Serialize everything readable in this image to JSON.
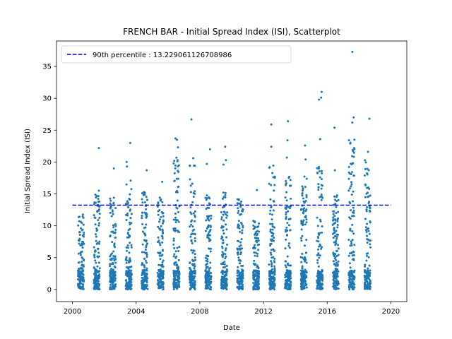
{
  "chart_data": {
    "type": "scatter",
    "title": "FRENCH BAR - Initial Spread Index (ISI), Scatterplot",
    "xlabel": "Date",
    "ylabel": "Initial Spread Index (ISI)",
    "xlim": [
      1999.0,
      2021.0
    ],
    "ylim": [
      -1.9,
      39.0
    ],
    "x_ticks": [
      "2000",
      "2004",
      "2008",
      "2012",
      "2016",
      "2020"
    ],
    "y_ticks": [
      "0",
      "5",
      "10",
      "15",
      "20",
      "25",
      "30",
      "35"
    ],
    "grid": false,
    "legend": {
      "placement": "top-left",
      "entries": [
        "90th percentile : 13.229061126708986"
      ]
    },
    "series": [
      {
        "kind": "scatter",
        "color": "#1f77b4"
      },
      {
        "kind": "hline",
        "name": "90th percentile : 13.229061126708986",
        "y": 13.229061126708986,
        "x_range": [
          2000.0,
          2020.0
        ],
        "color": "#0000cc",
        "style": "dashed"
      }
    ],
    "seasons": [
      {
        "year": 2000,
        "start": 2000.35,
        "end": 2000.72,
        "peak": 11.8,
        "outliers": []
      },
      {
        "year": 2001,
        "start": 2001.35,
        "end": 2001.72,
        "peak": 15.3,
        "outliers": [
          22.2,
          15.5
        ]
      },
      {
        "year": 2002,
        "start": 2002.35,
        "end": 2002.72,
        "peak": 14.6,
        "outliers": [
          19.0
        ]
      },
      {
        "year": 2003,
        "start": 2003.35,
        "end": 2003.72,
        "peak": 17.2,
        "outliers": [
          23.0,
          20.0,
          19.3
        ]
      },
      {
        "year": 2004,
        "start": 2004.35,
        "end": 2004.72,
        "peak": 15.3,
        "outliers": [
          18.7
        ]
      },
      {
        "year": 2005,
        "start": 2005.35,
        "end": 2005.72,
        "peak": 14.5,
        "outliers": [
          16.9
        ]
      },
      {
        "year": 2006,
        "start": 2006.35,
        "end": 2006.72,
        "peak": 20.9,
        "outliers": [
          23.7,
          23.5,
          22.3
        ]
      },
      {
        "year": 2007,
        "start": 2007.35,
        "end": 2007.72,
        "peak": 19.5,
        "outliers": [
          26.7,
          20.6
        ]
      },
      {
        "year": 2008,
        "start": 2008.35,
        "end": 2008.72,
        "peak": 15.3,
        "outliers": [
          22.0,
          19.7
        ]
      },
      {
        "year": 2009,
        "start": 2009.35,
        "end": 2009.72,
        "peak": 15.2,
        "outliers": [
          22.4,
          20.3,
          19.6
        ]
      },
      {
        "year": 2010,
        "start": 2010.35,
        "end": 2010.72,
        "peak": 14.8,
        "outliers": []
      },
      {
        "year": 2011,
        "start": 2011.35,
        "end": 2011.72,
        "peak": 10.8,
        "outliers": [
          15.6
        ]
      },
      {
        "year": 2012,
        "start": 2012.35,
        "end": 2012.72,
        "peak": 19.6,
        "outliers": [
          25.9,
          22.4
        ]
      },
      {
        "year": 2013,
        "start": 2013.35,
        "end": 2013.72,
        "peak": 17.8,
        "outliers": [
          26.4,
          23.4,
          20.7
        ]
      },
      {
        "year": 2014,
        "start": 2014.35,
        "end": 2014.72,
        "peak": 17.9,
        "outliers": [
          22.6,
          20.4
        ]
      },
      {
        "year": 2015,
        "start": 2015.35,
        "end": 2015.72,
        "peak": 19.8,
        "outliers": [
          31.0,
          30.1,
          29.8,
          23.6
        ]
      },
      {
        "year": 2016,
        "start": 2016.35,
        "end": 2016.72,
        "peak": 14.8,
        "outliers": [
          25.4,
          18.7
        ]
      },
      {
        "year": 2017,
        "start": 2017.35,
        "end": 2017.72,
        "peak": 23.6,
        "outliers": [
          37.3,
          27.0,
          26.2,
          22.9
        ]
      },
      {
        "year": 2018,
        "start": 2018.35,
        "end": 2018.72,
        "peak": 20.3,
        "outliers": [
          26.8,
          21.6,
          18.9
        ]
      }
    ]
  }
}
